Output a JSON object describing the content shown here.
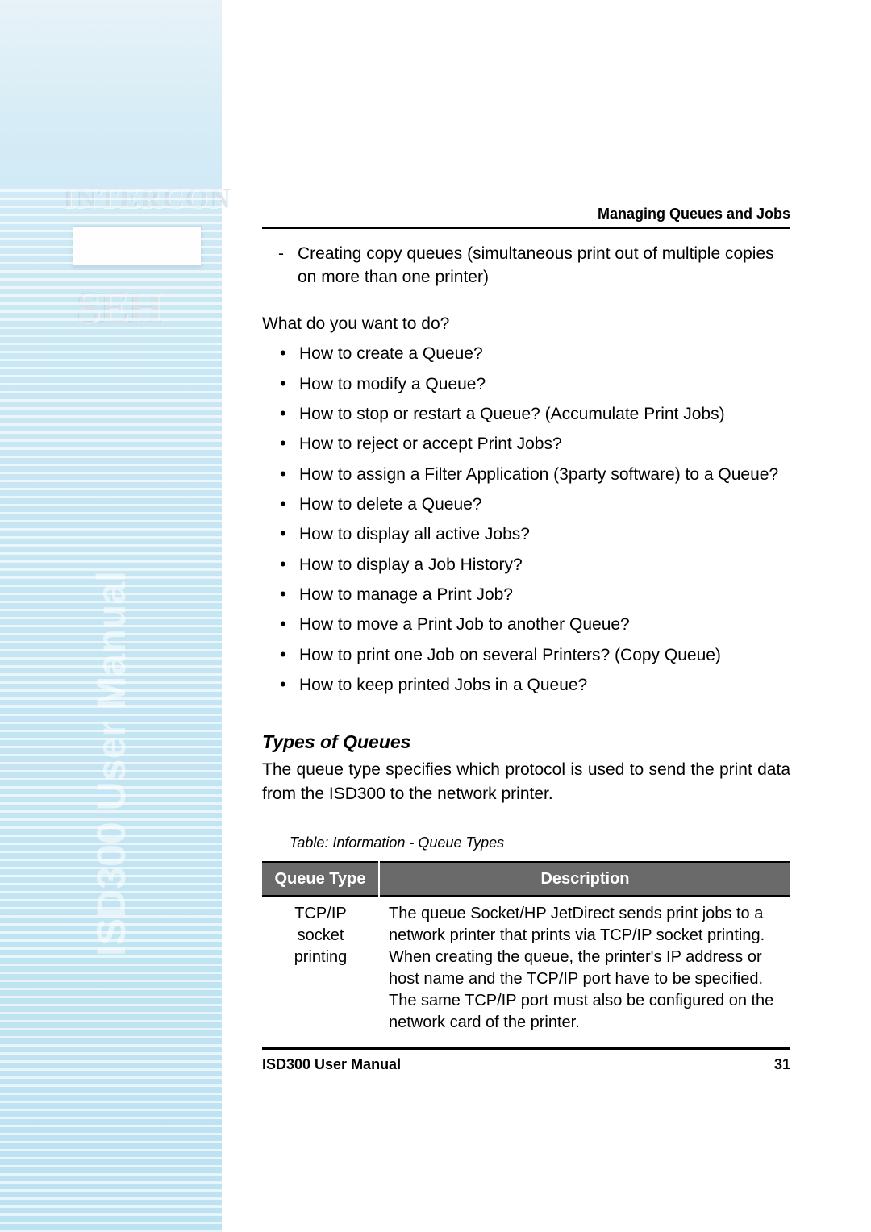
{
  "sidebar": {
    "vertical_text": "ISD300 User Manual",
    "brand_overlay": "INTERCON",
    "brand_short": "SEH",
    "background_gradient": [
      "#e8f2f8",
      "#bde2f2"
    ],
    "vertical_text_color": "rgba(255,255,255,0.55)"
  },
  "header": {
    "chapter_title": "Managing Queues and Jobs",
    "font_weight": 700,
    "font_size_pt": 13
  },
  "intro_dash": {
    "text": "Creating copy queues (simultaneous print out of multiple copies on more than one printer)"
  },
  "prompt": "What do you want to do?",
  "bullet_items": [
    "How to create a Queue?",
    "How to modify a Queue?",
    "How to stop or restart a Queue? (Accumulate Print Jobs)",
    "How to reject or accept Print Jobs?",
    "How to assign a Filter Application (3party software) to a Queue?",
    "How to delete a Queue?",
    "How to display all active Jobs?",
    "How to display a Job History?",
    "How to manage a Print Job?",
    "How to move a Print Job to another Queue?",
    "How to print one Job on several Printers? (Copy Queue)",
    "How to keep printed Jobs in a Queue?"
  ],
  "section": {
    "heading": "Types of Queues",
    "paragraph": "The queue type specifies which protocol is used to send the print data from the ISD300 to the network printer."
  },
  "table": {
    "caption": "Table: Information - Queue Types",
    "columns": [
      "Queue Type",
      "Description"
    ],
    "header_bg": "#6a6a6a",
    "header_fg": "#ffffff",
    "rows": [
      {
        "type": "TCP/IP socket printing",
        "desc": "The queue Socket/HP JetDirect sends print jobs to a network printer that prints via TCP/IP socket printing. When creating the queue, the printer's IP address or host name and the TCP/IP port have to be specified.\nThe same TCP/IP port must also be configured on the network card of the printer."
      }
    ]
  },
  "footer": {
    "left": "ISD300 User Manual",
    "page_number": "31"
  },
  "typography": {
    "body_font": "Arial",
    "body_size_pt": 15,
    "heading_italic": true,
    "text_color": "#000000",
    "background_color": "#ffffff"
  }
}
